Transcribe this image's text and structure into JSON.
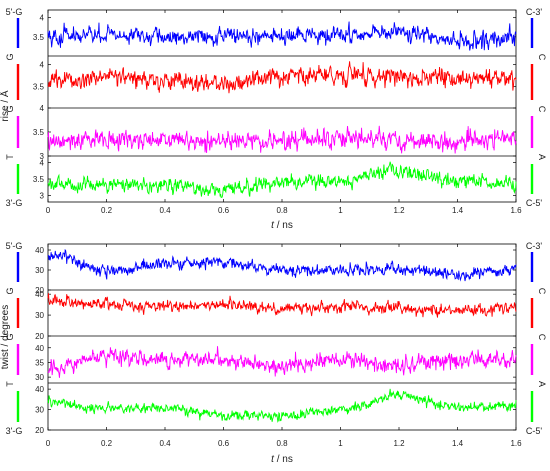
{
  "chart_data": [
    {
      "type": "line",
      "ylabel": "rise / Å",
      "xlabel": "t / ns",
      "xlabel_italic_part": "t",
      "xlabel_rest": " / ns",
      "xlim": [
        0,
        1.6
      ],
      "xticks": [
        "0",
        "0.2",
        "0.4",
        "0.6",
        "0.8",
        "1",
        "1.2",
        "1.4",
        "1.6"
      ],
      "strand_left_top": "5'-G",
      "strand_left_bottom": "3'-G",
      "strand_right_top": "C-3'",
      "strand_right_bottom": "C-5'",
      "grid": false,
      "series": [
        {
          "left": "5'-G",
          "right": "C-3'",
          "color": "#0000ff",
          "ylim": [
            3,
            4.2
          ],
          "yticks": [
            "3.5",
            "4"
          ],
          "mean": 3.5,
          "amp": 0.22,
          "x": [
            0,
            0.2,
            0.4,
            0.6,
            0.8,
            1.0,
            1.2,
            1.4,
            1.6
          ],
          "y": [
            3.5,
            3.55,
            3.48,
            3.55,
            3.5,
            3.55,
            3.6,
            3.4,
            3.45
          ]
        },
        {
          "left": "G",
          "right": "C",
          "color": "#ff0000",
          "ylim": [
            3,
            4.2
          ],
          "yticks": [
            "3.5",
            "4"
          ],
          "mean": 3.68,
          "amp": 0.22,
          "x": [
            0,
            0.2,
            0.4,
            0.6,
            0.8,
            1.0,
            1.2,
            1.4,
            1.6
          ],
          "y": [
            3.65,
            3.7,
            3.62,
            3.58,
            3.72,
            3.78,
            3.7,
            3.72,
            3.68
          ]
        },
        {
          "left": "G",
          "right": "C",
          "color": "#ff00ff",
          "ylim": [
            3,
            4
          ],
          "yticks": [
            "3",
            "3.5",
            "4"
          ],
          "mean": 3.33,
          "amp": 0.2,
          "x": [
            0,
            0.2,
            0.4,
            0.6,
            0.8,
            1.0,
            1.2,
            1.4,
            1.6
          ],
          "y": [
            3.3,
            3.35,
            3.35,
            3.3,
            3.32,
            3.38,
            3.32,
            3.3,
            3.35
          ]
        },
        {
          "left": "T",
          "right": "A",
          "color": "#00ff00",
          "ylim": [
            2.8,
            4.2
          ],
          "yticks": [
            "3",
            "3.5",
            "4"
          ],
          "mean": 3.35,
          "amp": 0.22,
          "x": [
            0,
            0.2,
            0.4,
            0.6,
            0.8,
            1.0,
            1.2,
            1.4,
            1.6
          ],
          "y": [
            3.3,
            3.35,
            3.3,
            3.15,
            3.4,
            3.45,
            3.75,
            3.45,
            3.3
          ]
        }
      ]
    },
    {
      "type": "line",
      "ylabel": "twist / degrees",
      "xlabel": "t / ns",
      "xlabel_italic_part": "t",
      "xlabel_rest": " / ns",
      "xlim": [
        0,
        1.6
      ],
      "xticks": [
        "0",
        "0.2",
        "0.4",
        "0.6",
        "0.8",
        "1",
        "1.2",
        "1.4",
        "1.6"
      ],
      "strand_left_top": "5'-G",
      "strand_left_bottom": "3'-G",
      "strand_right_top": "C-3'",
      "strand_right_bottom": "C-5'",
      "grid": false,
      "series": [
        {
          "left": "5'-G",
          "right": "C-3'",
          "color": "#0000ff",
          "ylim": [
            20,
            43
          ],
          "yticks": [
            "20",
            "30",
            "40"
          ],
          "mean": 33,
          "amp": 3,
          "x": [
            0,
            0.2,
            0.4,
            0.6,
            0.8,
            1.0,
            1.2,
            1.4,
            1.6
          ],
          "y": [
            38,
            30,
            33,
            34,
            30,
            30,
            30,
            28,
            30
          ]
        },
        {
          "left": "G",
          "right": "C",
          "color": "#ff0000",
          "ylim": [
            20,
            42
          ],
          "yticks": [
            "20",
            "30",
            "40"
          ],
          "mean": 34,
          "amp": 3,
          "x": [
            0,
            0.2,
            0.4,
            0.6,
            0.8,
            1.0,
            1.2,
            1.4,
            1.6
          ],
          "y": [
            37,
            35,
            34,
            35,
            33,
            34,
            33,
            32,
            33
          ]
        },
        {
          "left": "G",
          "right": "C",
          "color": "#ff00ff",
          "ylim": [
            28,
            44
          ],
          "yticks": [
            "30",
            "35",
            "40"
          ],
          "mean": 35,
          "amp": 3,
          "x": [
            0,
            0.2,
            0.4,
            0.6,
            0.8,
            1.0,
            1.2,
            1.4,
            1.6
          ],
          "y": [
            33,
            37,
            36,
            36,
            34,
            36,
            34,
            36,
            36
          ]
        },
        {
          "left": "T",
          "right": "A",
          "color": "#00ff00",
          "ylim": [
            20,
            43
          ],
          "yticks": [
            "20",
            "30",
            "40"
          ],
          "mean": 31,
          "amp": 2.5,
          "x": [
            0,
            0.2,
            0.4,
            0.6,
            0.8,
            1.0,
            1.2,
            1.4,
            1.6
          ],
          "y": [
            34,
            30,
            31,
            27,
            27,
            30,
            37,
            31,
            32
          ]
        }
      ]
    }
  ]
}
